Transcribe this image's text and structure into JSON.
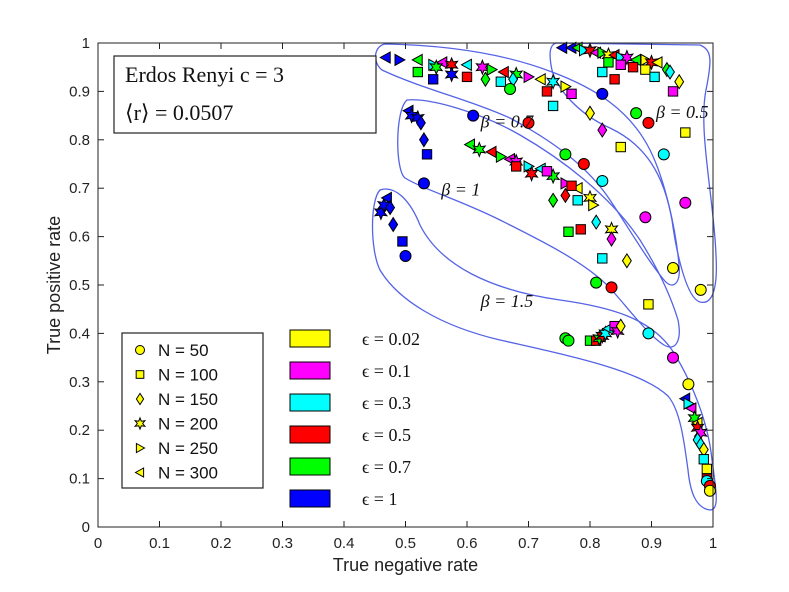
{
  "chart_data": {
    "type": "scatter",
    "xlabel": "True negative rate",
    "ylabel": "True positive rate",
    "xlim": [
      0,
      1
    ],
    "ylim": [
      0,
      1
    ],
    "x_ticks": [
      "0",
      "0.1",
      "0.2",
      "0.3",
      "0.4",
      "0.5",
      "0.6",
      "0.7",
      "0.8",
      "0.9",
      "1"
    ],
    "y_ticks": [
      "0",
      "0.1",
      "0.2",
      "0.3",
      "0.4",
      "0.5",
      "0.6",
      "0.7",
      "0.8",
      "0.9",
      "1"
    ],
    "title_box": {
      "line1": "Erdos Renyi c = 3",
      "line2": "⟨r⟩ = 0.0507"
    },
    "marker_legend": [
      {
        "label": "N = 50",
        "shape": "circle"
      },
      {
        "label": "N = 100",
        "shape": "square"
      },
      {
        "label": "N = 150",
        "shape": "diamond"
      },
      {
        "label": "N = 200",
        "shape": "hexagram"
      },
      {
        "label": "N = 250",
        "shape": "triangle-right"
      },
      {
        "label": "N = 300",
        "shape": "triangle-left"
      }
    ],
    "color_legend": [
      {
        "label": "ϵ = 0.02",
        "color": "#ffff00"
      },
      {
        "label": "ϵ = 0.1",
        "color": "#ff00ff"
      },
      {
        "label": "ϵ = 0.3",
        "color": "#00ffff"
      },
      {
        "label": "ϵ = 0.5",
        "color": "#ff0000"
      },
      {
        "label": "ϵ = 0.7",
        "color": "#00ff00"
      },
      {
        "label": "ϵ = 1",
        "color": "#0000ff"
      }
    ],
    "region_labels": [
      {
        "label": "β = 0.5",
        "x": 0.95,
        "y": 0.845
      },
      {
        "label": "β = 0.7",
        "x": 0.665,
        "y": 0.825
      },
      {
        "label": "β = 1",
        "x": 0.59,
        "y": 0.685
      },
      {
        "label": "β = 1.5",
        "x": 0.665,
        "y": 0.455
      }
    ],
    "series": [
      {
        "name": "β = 0.5",
        "points": [
          [
            0.755,
            0.99,
            "triangle-left",
            "#0000ff"
          ],
          [
            0.77,
            0.99,
            "triangle-left",
            "#0000ff"
          ],
          [
            0.78,
            0.99,
            "triangle-left",
            "#00ff00"
          ],
          [
            0.79,
            0.985,
            "triangle-right",
            "#00ffff"
          ],
          [
            0.8,
            0.985,
            "hexagram",
            "#ff0000"
          ],
          [
            0.81,
            0.98,
            "triangle-left",
            "#ff00ff"
          ],
          [
            0.82,
            0.98,
            "triangle-right",
            "#00ff00"
          ],
          [
            0.83,
            0.975,
            "hexagram",
            "#ffff00"
          ],
          [
            0.84,
            0.975,
            "triangle-left",
            "#ff0000"
          ],
          [
            0.85,
            0.97,
            "triangle-right",
            "#00ffff"
          ],
          [
            0.86,
            0.97,
            "hexagram",
            "#ff00ff"
          ],
          [
            0.875,
            0.965,
            "triangle-left",
            "#00ff00"
          ],
          [
            0.89,
            0.965,
            "triangle-right",
            "#ffff00"
          ],
          [
            0.9,
            0.96,
            "hexagram",
            "#ff0000"
          ],
          [
            0.91,
            0.96,
            "triangle-left",
            "#ffff00"
          ],
          [
            0.83,
            0.96,
            "square",
            "#00ff00"
          ],
          [
            0.85,
            0.955,
            "square",
            "#ff00ff"
          ],
          [
            0.87,
            0.95,
            "square",
            "#ff0000"
          ],
          [
            0.89,
            0.945,
            "square",
            "#ffff00"
          ],
          [
            0.905,
            0.93,
            "square",
            "#00ffff"
          ],
          [
            0.935,
            0.9,
            "square",
            "#ff00ff"
          ],
          [
            0.955,
            0.815,
            "square",
            "#ffff00"
          ],
          [
            0.82,
            0.94,
            "square",
            "#00ffff"
          ],
          [
            0.84,
            0.925,
            "square",
            "#ff0000"
          ],
          [
            0.925,
            0.945,
            "diamond",
            "#00ff00"
          ],
          [
            0.93,
            0.94,
            "diamond",
            "#00ffff"
          ],
          [
            0.945,
            0.92,
            "diamond",
            "#ffff00"
          ],
          [
            0.875,
            0.855,
            "circle",
            "#00ff00"
          ],
          [
            0.895,
            0.835,
            "circle",
            "#ff0000"
          ],
          [
            0.82,
            0.895,
            "circle",
            "#0000ff"
          ],
          [
            0.92,
            0.77,
            "circle",
            "#00ffff"
          ],
          [
            0.955,
            0.67,
            "circle",
            "#ff00ff"
          ],
          [
            0.98,
            0.49,
            "circle",
            "#ffff00"
          ]
        ]
      },
      {
        "name": "β = 0.7",
        "points": [
          [
            0.468,
            0.97,
            "triangle-left",
            "#0000ff"
          ],
          [
            0.49,
            0.965,
            "triangle-right",
            "#0000ff"
          ],
          [
            0.52,
            0.965,
            "triangle-left",
            "#00ff00"
          ],
          [
            0.545,
            0.955,
            "triangle-right",
            "#00ffff"
          ],
          [
            0.56,
            0.96,
            "triangle-left",
            "#ff00ff"
          ],
          [
            0.575,
            0.955,
            "hexagram",
            "#ff0000"
          ],
          [
            0.6,
            0.955,
            "triangle-left",
            "#00ffff"
          ],
          [
            0.625,
            0.95,
            "hexagram",
            "#ff00ff"
          ],
          [
            0.64,
            0.945,
            "triangle-right",
            "#00ff00"
          ],
          [
            0.66,
            0.94,
            "triangle-left",
            "#ff0000"
          ],
          [
            0.68,
            0.935,
            "hexagram",
            "#00ff00"
          ],
          [
            0.7,
            0.93,
            "triangle-right",
            "#ff00ff"
          ],
          [
            0.72,
            0.925,
            "triangle-left",
            "#ffff00"
          ],
          [
            0.74,
            0.92,
            "hexagram",
            "#00ffff"
          ],
          [
            0.76,
            0.91,
            "triangle-right",
            "#ffff00"
          ],
          [
            0.55,
            0.95,
            "hexagram",
            "#00ff00"
          ],
          [
            0.52,
            0.94,
            "square",
            "#00ff00"
          ],
          [
            0.545,
            0.925,
            "square",
            "#0000ff"
          ],
          [
            0.575,
            0.935,
            "hexagram",
            "#0000ff"
          ],
          [
            0.6,
            0.93,
            "square",
            "#ff0000"
          ],
          [
            0.63,
            0.925,
            "diamond",
            "#00ff00"
          ],
          [
            0.655,
            0.92,
            "square",
            "#00ffff"
          ],
          [
            0.675,
            0.925,
            "diamond",
            "#00ffff"
          ],
          [
            0.73,
            0.9,
            "square",
            "#ff0000"
          ],
          [
            0.67,
            0.905,
            "circle",
            "#00ff00"
          ],
          [
            0.74,
            0.87,
            "square",
            "#00ffff"
          ],
          [
            0.8,
            0.855,
            "diamond",
            "#ffff00"
          ],
          [
            0.82,
            0.82,
            "diamond",
            "#ff00ff"
          ],
          [
            0.77,
            0.895,
            "square",
            "#ff00ff"
          ],
          [
            0.7,
            0.835,
            "circle",
            "#ff0000"
          ],
          [
            0.76,
            0.77,
            "circle",
            "#00ff00"
          ],
          [
            0.79,
            0.75,
            "circle",
            "#ff0000"
          ],
          [
            0.82,
            0.715,
            "circle",
            "#00ffff"
          ],
          [
            0.85,
            0.785,
            "square",
            "#ffff00"
          ],
          [
            0.89,
            0.64,
            "circle",
            "#ff00ff"
          ],
          [
            0.935,
            0.535,
            "circle",
            "#ffff00"
          ]
        ]
      },
      {
        "name": "β = 1",
        "points": [
          [
            0.505,
            0.86,
            "triangle-left",
            "#0000ff"
          ],
          [
            0.51,
            0.85,
            "hexagram",
            "#0000ff"
          ],
          [
            0.52,
            0.845,
            "hexagram",
            "#0000ff"
          ],
          [
            0.525,
            0.835,
            "diamond",
            "#0000ff"
          ],
          [
            0.53,
            0.8,
            "diamond",
            "#0000ff"
          ],
          [
            0.535,
            0.77,
            "square",
            "#0000ff"
          ],
          [
            0.53,
            0.71,
            "circle",
            "#0000ff"
          ],
          [
            0.61,
            0.85,
            "circle",
            "#0000ff"
          ],
          [
            0.605,
            0.79,
            "triangle-left",
            "#00ff00"
          ],
          [
            0.62,
            0.78,
            "hexagram",
            "#00ff00"
          ],
          [
            0.64,
            0.775,
            "triangle-left",
            "#ff0000"
          ],
          [
            0.655,
            0.765,
            "triangle-right",
            "#00ff00"
          ],
          [
            0.67,
            0.76,
            "triangle-left",
            "#ff00ff"
          ],
          [
            0.68,
            0.755,
            "hexagram",
            "#ff00ff"
          ],
          [
            0.7,
            0.745,
            "triangle-right",
            "#00ffff"
          ],
          [
            0.72,
            0.74,
            "triangle-left",
            "#00ffff"
          ],
          [
            0.74,
            0.725,
            "hexagram",
            "#00ff00"
          ],
          [
            0.76,
            0.71,
            "triangle-right",
            "#ff00ff"
          ],
          [
            0.78,
            0.7,
            "triangle-left",
            "#ffff00"
          ],
          [
            0.8,
            0.68,
            "hexagram",
            "#ffff00"
          ],
          [
            0.805,
            0.665,
            "triangle-right",
            "#ffff00"
          ],
          [
            0.68,
            0.745,
            "square",
            "#ff0000"
          ],
          [
            0.705,
            0.73,
            "hexagram",
            "#ff0000"
          ],
          [
            0.73,
            0.735,
            "square",
            "#ff00ff"
          ],
          [
            0.77,
            0.705,
            "square",
            "#ff0000"
          ],
          [
            0.74,
            0.675,
            "diamond",
            "#00ff00"
          ],
          [
            0.76,
            0.685,
            "diamond",
            "#ff0000"
          ],
          [
            0.78,
            0.675,
            "square",
            "#00ffff"
          ],
          [
            0.765,
            0.61,
            "square",
            "#00ff00"
          ],
          [
            0.785,
            0.615,
            "square",
            "#ff0000"
          ],
          [
            0.81,
            0.63,
            "diamond",
            "#00ffff"
          ],
          [
            0.835,
            0.615,
            "hexagram",
            "#ffff00"
          ],
          [
            0.835,
            0.595,
            "diamond",
            "#ff00ff"
          ],
          [
            0.82,
            0.555,
            "square",
            "#00ffff"
          ],
          [
            0.86,
            0.55,
            "diamond",
            "#ffff00"
          ],
          [
            0.81,
            0.505,
            "circle",
            "#00ff00"
          ],
          [
            0.835,
            0.495,
            "circle",
            "#ff0000"
          ],
          [
            0.895,
            0.46,
            "square",
            "#ffff00"
          ],
          [
            0.895,
            0.4,
            "circle",
            "#00ffff"
          ],
          [
            0.935,
            0.35,
            "circle",
            "#ff00ff"
          ],
          [
            0.96,
            0.295,
            "circle",
            "#ffff00"
          ]
        ]
      },
      {
        "name": "β = 1.5",
        "points": [
          [
            0.46,
            0.65,
            "hexagram",
            "#0000ff"
          ],
          [
            0.465,
            0.665,
            "hexagram",
            "#0000ff"
          ],
          [
            0.47,
            0.68,
            "triangle-left",
            "#0000ff"
          ],
          [
            0.475,
            0.66,
            "diamond",
            "#0000ff"
          ],
          [
            0.48,
            0.625,
            "diamond",
            "#0000ff"
          ],
          [
            0.495,
            0.59,
            "square",
            "#0000ff"
          ],
          [
            0.5,
            0.56,
            "circle",
            "#0000ff"
          ],
          [
            0.76,
            0.39,
            "circle",
            "#00ff00"
          ],
          [
            0.765,
            0.385,
            "circle",
            "#00ff00"
          ],
          [
            0.8,
            0.385,
            "square",
            "#00ff00"
          ],
          [
            0.81,
            0.385,
            "square",
            "#ff0000"
          ],
          [
            0.815,
            0.39,
            "hexagram",
            "#00ff00"
          ],
          [
            0.82,
            0.395,
            "hexagram",
            "#ff0000"
          ],
          [
            0.825,
            0.4,
            "hexagram",
            "#00ffff"
          ],
          [
            0.83,
            0.41,
            "triangle-left",
            "#00ffff"
          ],
          [
            0.84,
            0.415,
            "square",
            "#ff00ff"
          ],
          [
            0.845,
            0.405,
            "hexagram",
            "#ff00ff"
          ],
          [
            0.85,
            0.415,
            "diamond",
            "#ffff00"
          ],
          [
            0.955,
            0.265,
            "triangle-left",
            "#0000ff"
          ],
          [
            0.96,
            0.255,
            "triangle-right",
            "#00ffff"
          ],
          [
            0.965,
            0.245,
            "triangle-left",
            "#ff00ff"
          ],
          [
            0.97,
            0.225,
            "hexagram",
            "#00ff00"
          ],
          [
            0.975,
            0.215,
            "triangle-left",
            "#ffff00"
          ],
          [
            0.975,
            0.205,
            "hexagram",
            "#ff0000"
          ],
          [
            0.98,
            0.195,
            "hexagram",
            "#ff00ff"
          ],
          [
            0.975,
            0.18,
            "diamond",
            "#00ffff"
          ],
          [
            0.98,
            0.17,
            "diamond",
            "#00ffff"
          ],
          [
            0.985,
            0.16,
            "diamond",
            "#ffff00"
          ],
          [
            0.985,
            0.14,
            "square",
            "#00ffff"
          ],
          [
            0.99,
            0.12,
            "square",
            "#ffff00"
          ],
          [
            0.99,
            0.1,
            "square",
            "#ff0000"
          ],
          [
            0.99,
            0.095,
            "circle",
            "#00ffff"
          ],
          [
            0.995,
            0.085,
            "circle",
            "#ff0000"
          ],
          [
            0.995,
            0.075,
            "circle",
            "#ffff00"
          ]
        ]
      }
    ]
  }
}
